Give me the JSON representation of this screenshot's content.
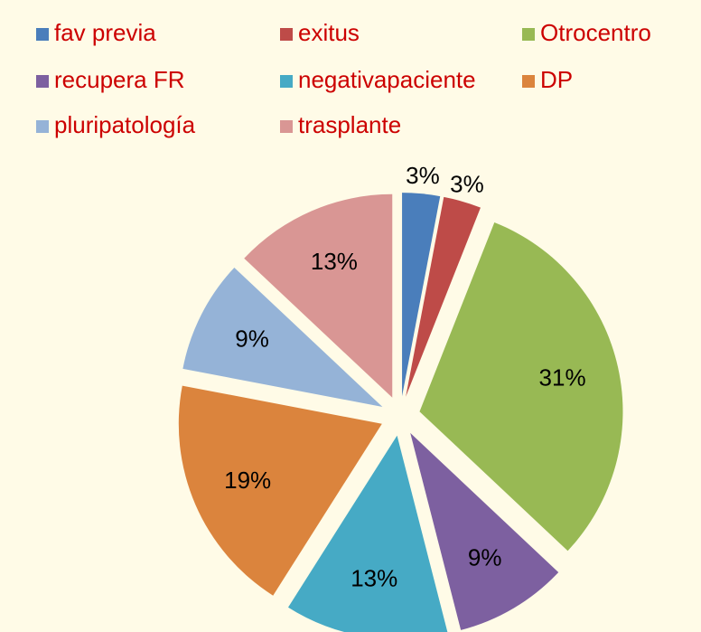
{
  "chart_data": {
    "type": "pie",
    "categories": [
      "fav previa",
      "exitus",
      "Otrocentro",
      "recupera FR",
      "negativapaciente",
      "DP",
      "pluripatología",
      "trasplante"
    ],
    "values": [
      3,
      3,
      31,
      9,
      13,
      19,
      9,
      13
    ],
    "value_labels": [
      "3%",
      "3%",
      "31%",
      "9%",
      "13%",
      "19%",
      "9%",
      "13%"
    ],
    "colors": [
      "#4a7ebb",
      "#be4b48",
      "#98b954",
      "#7d60a0",
      "#46aac5",
      "#db843d",
      "#95b3d7",
      "#d99694"
    ],
    "legend": "top"
  }
}
